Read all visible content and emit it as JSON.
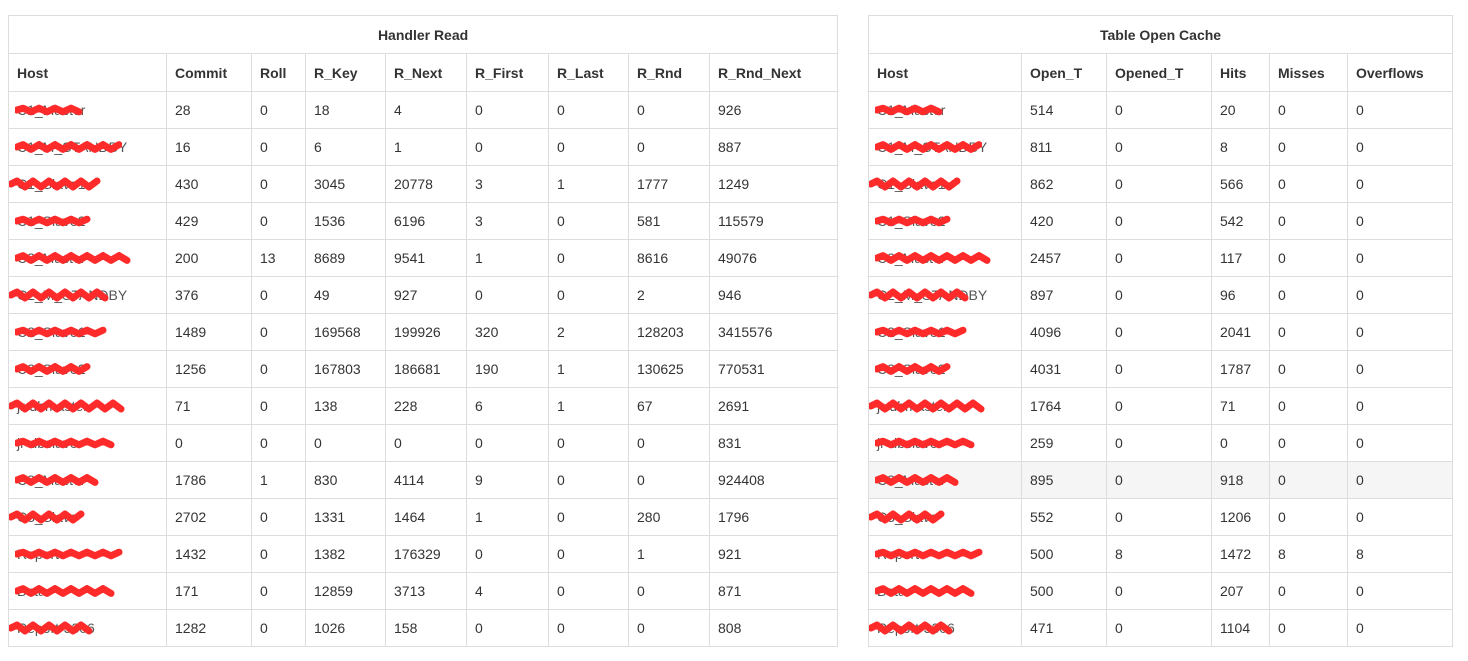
{
  "handler_read": {
    "title": "Handler Read",
    "columns": [
      "Host",
      "Commit",
      "Roll",
      "R_Key",
      "R_Next",
      "R_First",
      "R_Last",
      "R_Rnd",
      "R_Rnd_Next"
    ],
    "rows": [
      [
        "C1_Master",
        "28",
        "0",
        "18",
        "4",
        "0",
        "0",
        "0",
        "926"
      ],
      [
        "C1_M_STANDBY",
        "16",
        "0",
        "6",
        "1",
        "0",
        "0",
        "0",
        "887"
      ],
      [
        "C1_Slave1",
        "430",
        "0",
        "3045",
        "20778",
        "3",
        "1",
        "1777",
        "1249"
      ],
      [
        "C1_Slave2",
        "429",
        "0",
        "1536",
        "6196",
        "3",
        "0",
        "581",
        "115579"
      ],
      [
        "C2_Master",
        "200",
        "13",
        "8689",
        "9541",
        "1",
        "0",
        "8616",
        "49076"
      ],
      [
        "C2_M_STANDBY",
        "376",
        "0",
        "49",
        "927",
        "0",
        "0",
        "2",
        "946"
      ],
      [
        "C2_Slave1",
        "1489",
        "0",
        "169568",
        "199926",
        "320",
        "2",
        "128203",
        "3415576"
      ],
      [
        "C2_Slave2",
        "1256",
        "0",
        "167803",
        "186681",
        "190",
        "1",
        "130625",
        "770531"
      ],
      [
        "jr-dbmaster",
        "71",
        "0",
        "138",
        "228",
        "6",
        "1",
        "67",
        "2691"
      ],
      [
        "jr-dbslave",
        "0",
        "0",
        "0",
        "0",
        "0",
        "0",
        "0",
        "831"
      ],
      [
        "C3_Master",
        "1786",
        "1",
        "830",
        "4114",
        "9",
        "0",
        "0",
        "924408"
      ],
      [
        "C3_Slave",
        "2702",
        "0",
        "1331",
        "1464",
        "1",
        "0",
        "280",
        "1796"
      ],
      [
        "Report",
        "1432",
        "0",
        "1382",
        "176329",
        "0",
        "0",
        "1",
        "921"
      ],
      [
        "Beta",
        "171",
        "0",
        "12859",
        "3713",
        "4",
        "0",
        "0",
        "871"
      ],
      [
        "Report-3306",
        "1282",
        "0",
        "1026",
        "158",
        "0",
        "0",
        "0",
        "808"
      ]
    ]
  },
  "table_open_cache": {
    "title": "Table Open Cache",
    "columns": [
      "Host",
      "Open_T",
      "Opened_T",
      "Hits",
      "Misses",
      "Overflows"
    ],
    "rows": [
      [
        "C1_Master",
        "514",
        "0",
        "20",
        "0",
        "0"
      ],
      [
        "C1_M_STANDBY",
        "811",
        "0",
        "8",
        "0",
        "0"
      ],
      [
        "C1_Slave1",
        "862",
        "0",
        "566",
        "0",
        "0"
      ],
      [
        "C1_Slave2",
        "420",
        "0",
        "542",
        "0",
        "0"
      ],
      [
        "C2_Master",
        "2457",
        "0",
        "117",
        "0",
        "0"
      ],
      [
        "C2_M_STANDBY",
        "897",
        "0",
        "96",
        "0",
        "0"
      ],
      [
        "C2_Slave1",
        "4096",
        "0",
        "2041",
        "0",
        "0"
      ],
      [
        "C2_Slave2",
        "4031",
        "0",
        "1787",
        "0",
        "0"
      ],
      [
        "jr-dbmaster",
        "1764",
        "0",
        "71",
        "0",
        "0"
      ],
      [
        "jr-dbslave",
        "259",
        "0",
        "0",
        "0",
        "0"
      ],
      [
        "C3_Master",
        "895",
        "0",
        "918",
        "0",
        "0"
      ],
      [
        "C3_Slave",
        "552",
        "0",
        "1206",
        "0",
        "0"
      ],
      [
        "Report",
        "500",
        "8",
        "1472",
        "8",
        "8"
      ],
      [
        "Beta",
        "500",
        "0",
        "207",
        "0",
        "0"
      ],
      [
        "Report-3306",
        "471",
        "0",
        "1104",
        "0",
        "0"
      ]
    ]
  },
  "colors": {
    "redaction": "#ff2a2a",
    "border": "#dddddd",
    "hover_row": "#f5f5f5",
    "text": "#333333"
  }
}
